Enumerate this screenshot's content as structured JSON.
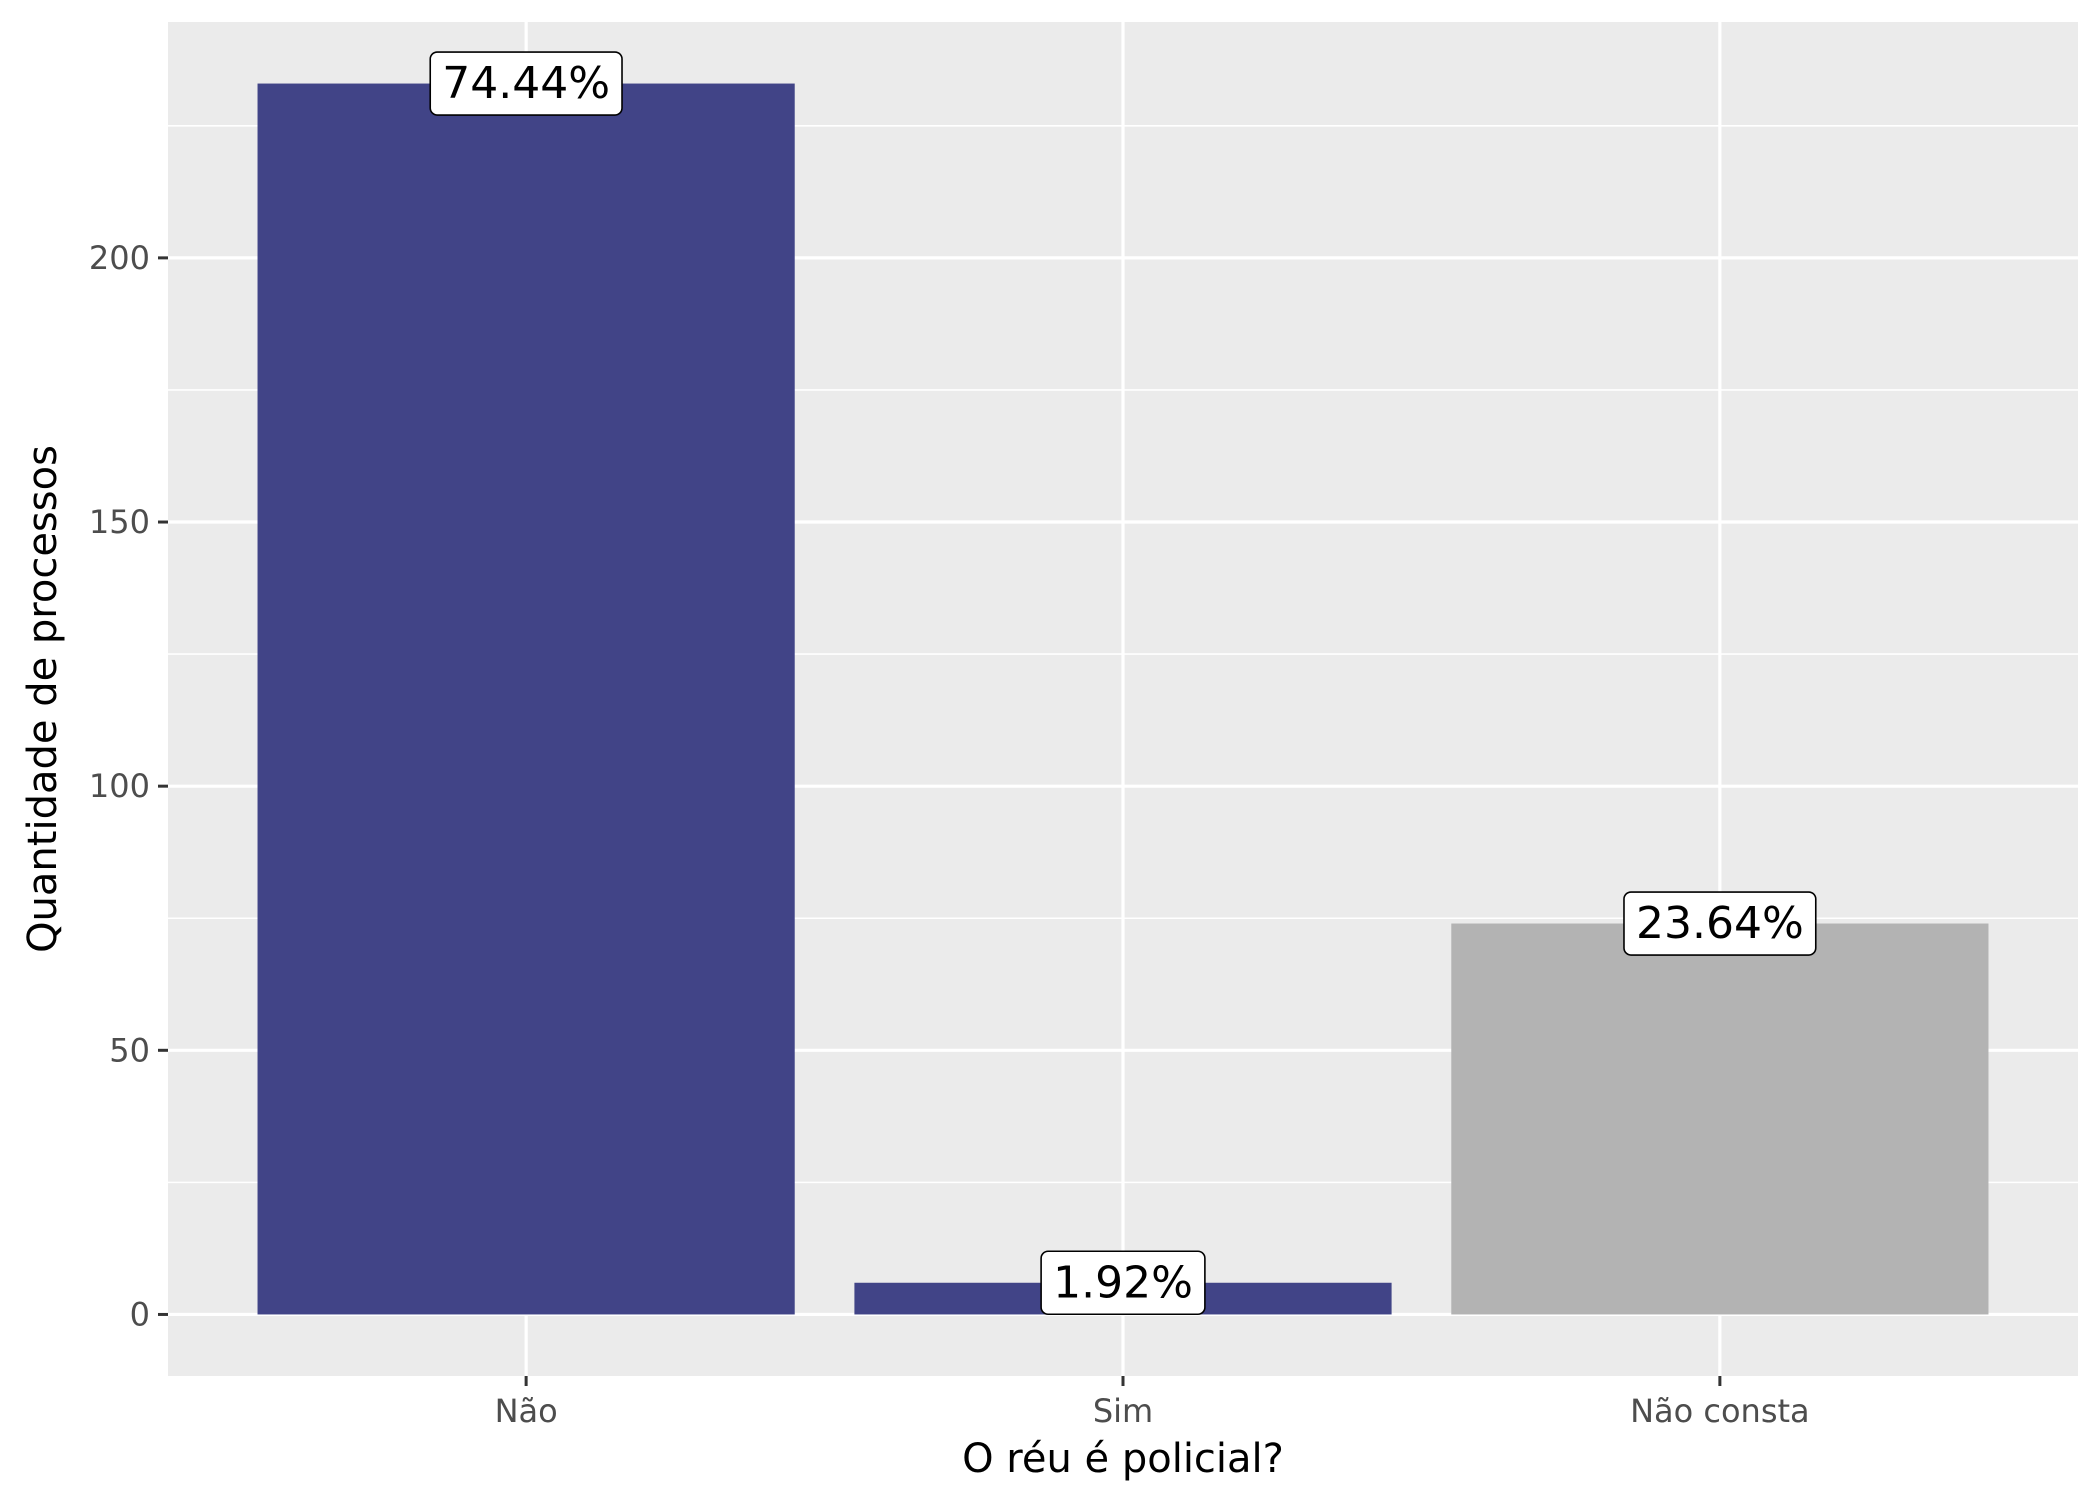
{
  "chart_data": {
    "type": "bar",
    "categories": [
      "Não",
      "Sim",
      "Não consta"
    ],
    "values": [
      233,
      6,
      74
    ],
    "labels": [
      "74.44%",
      "1.92%",
      "23.64%"
    ],
    "bar_colors": [
      "#414487",
      "#414487",
      "#b3b3b3"
    ],
    "xlabel": "O réu é policial?",
    "ylabel": "Quantidade de processos",
    "ylim": [
      -11.65,
      244.65
    ],
    "yticks": [
      0,
      50,
      100,
      150,
      200
    ],
    "ytick_labels": [
      "0",
      "50",
      "100",
      "150",
      "200"
    ],
    "grid": true,
    "legend": "none",
    "panel_background": "#ebebeb",
    "grid_color": "#ffffff"
  }
}
